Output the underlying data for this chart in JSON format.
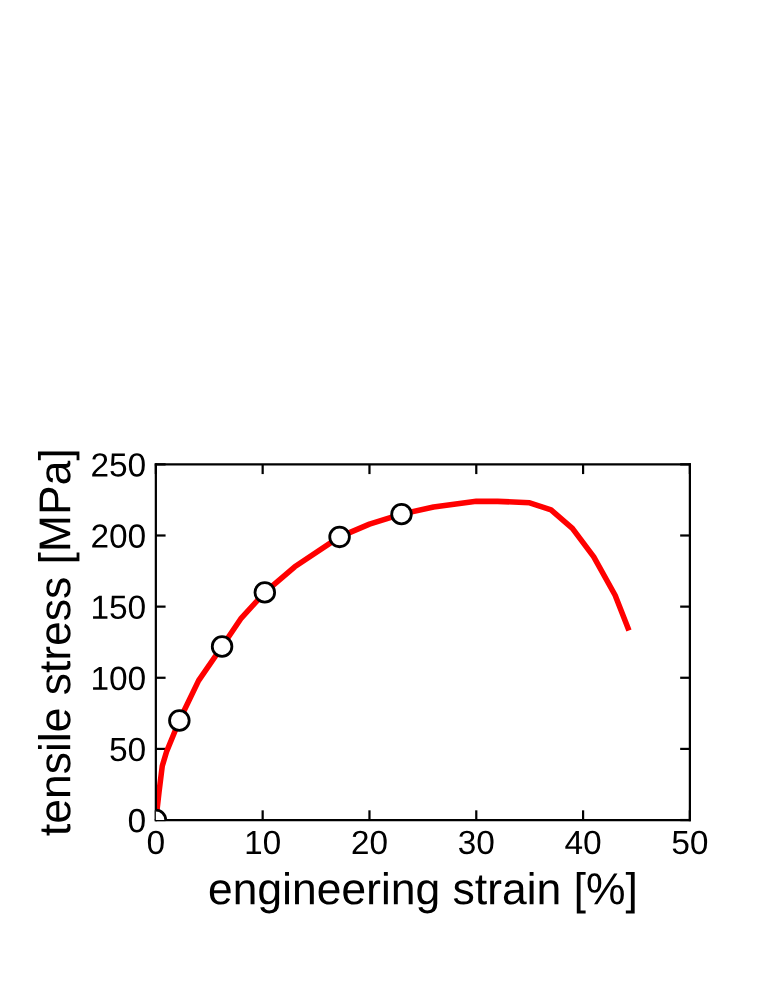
{
  "chart_data": {
    "type": "line",
    "xlabel": "engineering strain [%]",
    "ylabel": "tensile stress [MPa]",
    "series": [
      {
        "color": "#ff0000",
        "marker": "none",
        "line_style": "solid",
        "x": [
          0,
          0.3,
          0.6,
          1,
          2.2,
          4,
          6.2,
          8,
          10.2,
          13,
          17.2,
          20,
          23,
          26,
          30,
          32,
          35,
          37,
          39,
          41,
          43,
          44.2
        ],
        "values": [
          0,
          20,
          38,
          48,
          70,
          98,
          122,
          142,
          160,
          178,
          199,
          208,
          215,
          220,
          224,
          224,
          223,
          218,
          205,
          185,
          158,
          135
        ]
      },
      {
        "type": "scatter",
        "color": "#ffffff",
        "marker": "circle",
        "x": [
          0,
          2.2,
          6.2,
          10.2,
          17.2,
          23
        ],
        "values": [
          0,
          70,
          122,
          160,
          199,
          215
        ]
      }
    ],
    "xlim": [
      0,
      50
    ],
    "ylim": [
      0,
      250
    ],
    "xticks": [
      0,
      10,
      20,
      30,
      40,
      50
    ],
    "yticks": [
      0,
      50,
      100,
      150,
      200,
      250
    ],
    "grid": false,
    "legend": false
  }
}
